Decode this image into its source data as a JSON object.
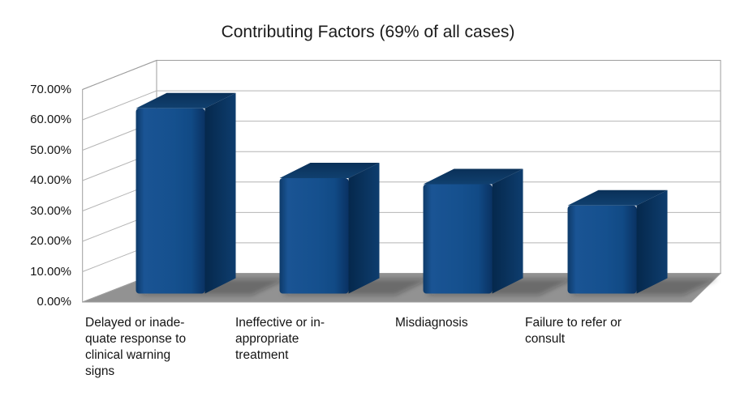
{
  "chart_data": {
    "type": "bar",
    "style": "3d-column",
    "title": "Contributing Factors (69% of all cases)",
    "categories": [
      "Delayed or inadequate response to clinical warning signs",
      "Ineffective or inappropriate treatment",
      "Misdiagnosis",
      "Failure to refer or consult"
    ],
    "categories_display": [
      "Delayed or inade-\nquate response to\nclinical warning\nsigns",
      "Ineffective or in-\nappropriate\ntreatment",
      "Misdiagnosis",
      "Failure to refer or\nconsult"
    ],
    "values": [
      61,
      38,
      36,
      29
    ],
    "unit": "%",
    "y_ticks": [
      "70.00%",
      "60.00%",
      "50.00%",
      "40.00%",
      "30.00%",
      "20.00%",
      "10.00%",
      "0.00%"
    ],
    "ylim": [
      0,
      70
    ],
    "y_tick_step": 10,
    "grid": true,
    "legend": false,
    "colors": {
      "bar_front": "#114a85",
      "bar_front_light": "#1a5494",
      "bar_top": "#0b3462",
      "bar_side_dark": "#05284c",
      "bar_side": "#0e3d6e",
      "floor": "#929292",
      "gridline": "#b4b4b4",
      "wall_border": "#9e9e9e",
      "text": "#141414",
      "background": "#ffffff"
    }
  }
}
